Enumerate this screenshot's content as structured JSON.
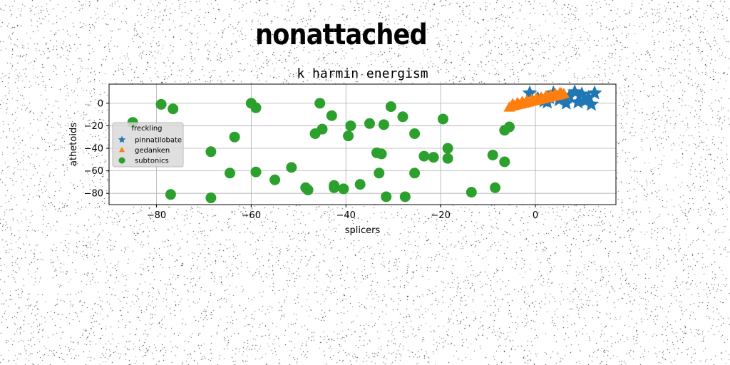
{
  "suptitle": "nonattached",
  "chart_data": {
    "type": "scatter",
    "title": "k harmin energism",
    "xlabel": "splicers",
    "ylabel": "athetoids",
    "xlim": [
      -90,
      17
    ],
    "ylim": [
      -90,
      17
    ],
    "xticks": [
      -80,
      -60,
      -40,
      -20,
      0
    ],
    "yticks": [
      0,
      -20,
      -40,
      -60,
      -80
    ],
    "xtick_labels": [
      "−80",
      "−60",
      "−40",
      "−20",
      "0"
    ],
    "ytick_labels": [
      "0",
      "−20",
      "−40",
      "−60",
      "−80"
    ],
    "grid": true,
    "legend": {
      "title": "freckling",
      "placement": "center-left"
    },
    "series": [
      {
        "name": "pinnatilobate",
        "marker": "star",
        "color": "#1f77b4",
        "x": [
          -1.2,
          0.5,
          1.8,
          3.0,
          3.8,
          5.0,
          6.5,
          7.2,
          8.3,
          9.0,
          9.8,
          10.5,
          11.2,
          11.8,
          12.5,
          2.5,
          5.5
        ],
        "y": [
          9,
          4,
          2,
          5,
          9,
          3,
          0,
          6,
          10,
          1,
          8,
          2,
          5,
          -1,
          9,
          1,
          7
        ]
      },
      {
        "name": "gedanken",
        "marker": "triangle",
        "color": "#ff7f0e",
        "x": [
          -5.5,
          -5.0,
          -4.5,
          -4.0,
          -3.5,
          -3.0,
          -2.5,
          -2.0,
          -1.5,
          -1.0,
          -0.5,
          0.0,
          0.5,
          1.0,
          1.5,
          2.0,
          2.5,
          3.0,
          3.5,
          4.0,
          4.5,
          5.0,
          5.5,
          6.0,
          -4.8,
          -3.8,
          -2.8,
          -1.8,
          -0.8,
          0.2,
          1.2,
          2.2,
          3.2,
          4.2,
          5.2
        ],
        "y": [
          -4,
          -3,
          -2.5,
          -2,
          -1.5,
          -1,
          -0.5,
          0,
          0.5,
          1,
          1.5,
          2,
          2.5,
          3,
          3.5,
          4,
          4.5,
          5,
          5.5,
          6,
          6.5,
          7,
          7.5,
          8,
          -1,
          0,
          1,
          2,
          3,
          4,
          5,
          6,
          7,
          8,
          9
        ]
      },
      {
        "name": "subtonics",
        "marker": "circle",
        "color": "#2ca02c",
        "x": [
          -85,
          -79,
          -77,
          -76.5,
          -68.5,
          -68.5,
          -64.5,
          -63.5,
          -60,
          -59,
          -59,
          -55,
          -51.5,
          -48.5,
          -48,
          -46.5,
          -45.5,
          -45,
          -43,
          -42.5,
          -42.5,
          -40.5,
          -39.5,
          -39,
          -37,
          -35,
          -33.5,
          -33,
          -32.5,
          -32,
          -31.5,
          -30.5,
          -28,
          -27.5,
          -25.5,
          -25.5,
          -23.5,
          -21.5,
          -19.5,
          -18.5,
          -18.5,
          -13.5,
          -9,
          -8.5,
          -6.5,
          -6.5,
          -5.5
        ],
        "y": [
          -17,
          -1,
          -81,
          -5,
          -43,
          -84,
          -62,
          -30,
          0,
          -4,
          -61,
          -68,
          -57,
          -75,
          -77,
          -27,
          0,
          -23,
          -11,
          -73,
          -75,
          -76,
          -29,
          -20,
          -72,
          -18,
          -44,
          -62,
          -45,
          -19,
          -83,
          -3,
          -12,
          -83,
          -27,
          -62,
          -47,
          -48,
          -14,
          -40,
          -49,
          -79,
          -46,
          -75,
          -52,
          -24,
          -21
        ]
      }
    ]
  }
}
